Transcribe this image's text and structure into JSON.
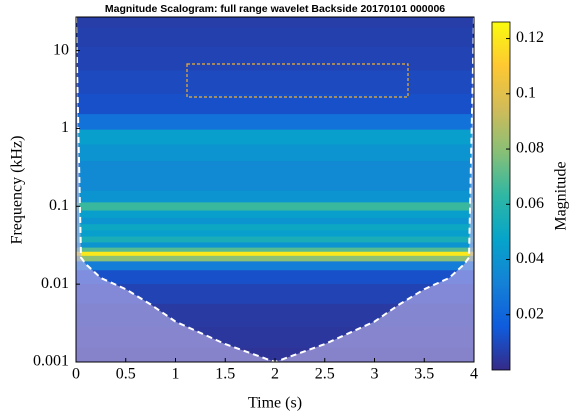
{
  "chart_data": {
    "type": "scalogram",
    "title": "Magnitude Scalogram: full range wavelet Backside 20170101 000006",
    "x_label": "Time (s)",
    "y_label": "Frequency (kHz)",
    "colorbar_label": "Magnitude",
    "xlim": [
      0,
      4
    ],
    "xticks": [
      0,
      0.5,
      1,
      1.5,
      2,
      2.5,
      3,
      3.5,
      4
    ],
    "ylim": [
      0.001,
      27
    ],
    "y_scale": "log",
    "yticks": [
      0.001,
      0.01,
      0.1,
      1,
      10
    ],
    "clim": [
      0,
      0.126
    ],
    "cticks": [
      0.02,
      0.04,
      0.06,
      0.08,
      0.1,
      0.12
    ],
    "colormap": [
      "#352a87",
      "#0f5cdd",
      "#1481d6",
      "#06a4ca",
      "#2eb7a4",
      "#87bf77",
      "#d1bb59",
      "#fec832",
      "#f9fb0e"
    ],
    "bands": {
      "frequency": [
        0.0012,
        0.002,
        0.004,
        0.008,
        0.013,
        0.018,
        0.022,
        0.025,
        0.028,
        0.032,
        0.038,
        0.045,
        0.055,
        0.065,
        0.08,
        0.1,
        0.13,
        0.2,
        0.3,
        0.5,
        0.8,
        1.2,
        2,
        4,
        8,
        16,
        25
      ],
      "magnitude": [
        0.003,
        0.004,
        0.005,
        0.008,
        0.012,
        0.03,
        0.08,
        0.12,
        0.07,
        0.04,
        0.055,
        0.045,
        0.05,
        0.04,
        0.045,
        0.065,
        0.04,
        0.035,
        0.035,
        0.04,
        0.045,
        0.025,
        0.012,
        0.01,
        0.008,
        0.007,
        0.006
      ]
    },
    "cone_of_influence": {
      "x": [
        0,
        0.05,
        0.1,
        0.25,
        0.5,
        0.75,
        1,
        1.5,
        2,
        2.5,
        3,
        3.25,
        3.5,
        3.75,
        3.9,
        3.95,
        4
      ],
      "y": [
        27,
        0.022,
        0.018,
        0.012,
        0.0086,
        0.0055,
        0.0033,
        0.0017,
        0.001,
        0.0017,
        0.0033,
        0.0055,
        0.0086,
        0.012,
        0.018,
        0.022,
        27
      ]
    }
  }
}
